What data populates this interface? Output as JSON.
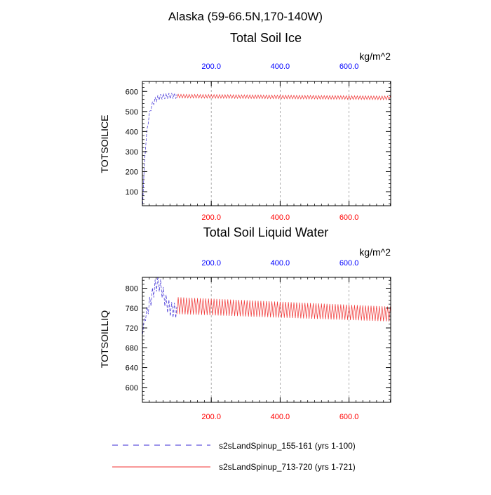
{
  "page": {
    "title": "Alaska (59-66.5N,170-140W)"
  },
  "legend": {
    "entries": [
      {
        "label": "s2sLandSpinup_155-161 (yrs 1-100)",
        "color": "#3b2bd6",
        "style": "dashed"
      },
      {
        "label": "s2sLandSpinup_713-720 (yrs 1-721)",
        "color": "#f03030",
        "style": "solid"
      }
    ]
  },
  "chart_data": [
    {
      "type": "line",
      "title": "Total Soil Ice",
      "ylabel": "TOTSOILICE",
      "units_label": "kg/m^2",
      "xlim": [
        0,
        721
      ],
      "ylim": [
        30,
        650
      ],
      "yticks": [
        100,
        200,
        300,
        400,
        500,
        600
      ],
      "ytick_labels": [
        "100",
        "200",
        "300",
        "400",
        "500",
        "600"
      ],
      "xticks": [
        200,
        400,
        600
      ],
      "xtick_labels_bottom": [
        "200.0",
        "400.0",
        "600.0"
      ],
      "xtick_labels_top": [
        "200.0",
        "400.0",
        "600.0"
      ],
      "bottom_tick_color": "#ff0000",
      "top_tick_color": "#0000ff",
      "grid_x": true,
      "series": [
        {
          "name": "s2sLandSpinup_155-161 (yrs 1-100)",
          "color": "#3b2bd6",
          "dash": "dashed",
          "x_start": 1,
          "x_end": 100,
          "model": "spinup",
          "start_value": 40,
          "plateau": 578,
          "rise_rate": 0.09,
          "amplitude": 28,
          "amp_start": 5,
          "amp_ramp": 0.08,
          "period": 8
        },
        {
          "name": "s2sLandSpinup_713-720 (yrs 1-721)",
          "color": "#f03030",
          "dash": "solid",
          "x_start": 100,
          "x_end": 721,
          "model": "trend",
          "trend_start": 577,
          "trend_end": 568,
          "amplitude": 18,
          "amp_end": 18,
          "period": 8
        }
      ]
    },
    {
      "type": "line",
      "title": "Total Soil Liquid Water",
      "ylabel": "TOTSOILLIQ",
      "units_label": "kg/m^2",
      "xlim": [
        0,
        721
      ],
      "ylim": [
        570,
        822
      ],
      "yticks": [
        600,
        640,
        680,
        720,
        760,
        800
      ],
      "ytick_labels": [
        "600",
        "640",
        "680",
        "720",
        "760",
        "800"
      ],
      "xticks": [
        200,
        400,
        600
      ],
      "xtick_labels_bottom": [
        "200.0",
        "400.0",
        "600.0"
      ],
      "xtick_labels_top": [
        "200.0",
        "400.0",
        "600.0"
      ],
      "bottom_tick_color": "#ff0000",
      "top_tick_color": "#0000ff",
      "grid_x": true,
      "series": [
        {
          "name": "s2sLandSpinup_155-161 (yrs 1-100)",
          "color": "#3b2bd6",
          "dash": "dashed",
          "x_start": 1,
          "x_end": 100,
          "model": "bump",
          "start_value": 712,
          "bump_center": 45,
          "bump_width": 22,
          "bump_height": 55,
          "base": 755,
          "amplitude": 30,
          "amp_start": 8,
          "amp_ramp": 0.08,
          "period": 8
        },
        {
          "name": "s2sLandSpinup_713-720 (yrs 1-721)",
          "color": "#f03030",
          "dash": "solid",
          "x_start": 100,
          "x_end": 721,
          "model": "trend",
          "trend_start": 765,
          "trend_end": 748,
          "amplitude": 34,
          "amp_end": 30,
          "period": 8
        }
      ]
    }
  ]
}
